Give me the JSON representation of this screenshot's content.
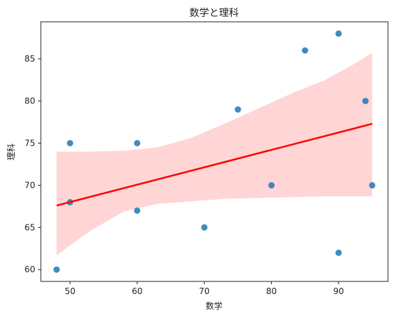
{
  "chart_data": {
    "type": "scatter",
    "title": "数学と理科",
    "xlabel": "数学",
    "ylabel": "理科",
    "xlim": [
      45.65,
      97.35
    ],
    "ylim": [
      58.6,
      89.4
    ],
    "xticks": [
      50,
      60,
      70,
      80,
      90
    ],
    "yticks": [
      60,
      65,
      70,
      75,
      80,
      85
    ],
    "grid": false,
    "series": [
      {
        "type": "scatter",
        "color": "#1f77b4",
        "x": [
          48,
          50,
          50,
          60,
          60,
          70,
          75,
          80,
          85,
          90,
          90,
          94,
          95
        ],
        "y": [
          60,
          75,
          68,
          75,
          67,
          65,
          79,
          70,
          86,
          88,
          62,
          80,
          70
        ]
      }
    ],
    "regression": {
      "color": "#ff0000",
      "band_color": "#ffb3b3",
      "x": [
        48,
        95
      ],
      "y": [
        67.6,
        77.3
      ],
      "band": {
        "x": [
          48,
          53,
          58,
          63,
          68,
          73,
          78,
          83,
          88,
          93,
          95
        ],
        "lower": [
          61.7,
          64.6,
          66.9,
          67.8,
          68.1,
          68.4,
          68.5,
          68.6,
          68.7,
          68.7,
          68.7
        ],
        "upper": [
          74.0,
          74.0,
          74.1,
          74.5,
          75.6,
          77.3,
          79.1,
          80.9,
          82.5,
          84.7,
          85.7
        ]
      }
    }
  }
}
